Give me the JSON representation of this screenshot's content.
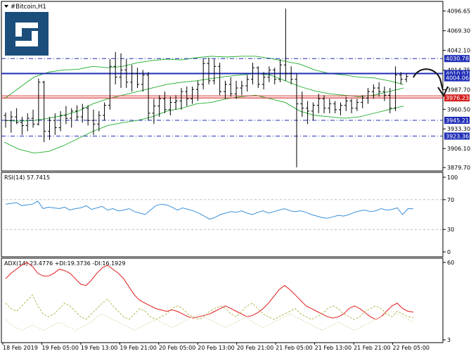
{
  "symbol_title": "#Bitcoin,H1",
  "colors": {
    "background": "#ffffff",
    "frame": "#000000",
    "bull_candle": "#000000",
    "bear_candle": "#000000",
    "bollinger": "#1fae2a",
    "support_resistance": "#1f2db5",
    "key_level": "#d42020",
    "rsi_line": "#3a8fd8",
    "adx_line": "#e21a1a",
    "plus_di": "#b9b85a",
    "minus_di": "#d9d8a8",
    "logo_bg": "#1b4e7a",
    "price_badge_bg": "#1f2db5",
    "price_badge_red": "#d42020"
  },
  "chart_data": [
    {
      "type": "candlestick",
      "panel": "price",
      "title": "#Bitcoin,H1",
      "y_axis_ticks": [
        "4096.65",
        "4069.30",
        "4042.10",
        "4014.75",
        "3987.70",
        "3960.50",
        "3933.30",
        "3906.10",
        "3879.70"
      ],
      "ylim": [
        3875,
        4110
      ],
      "x_tick_labels": [
        "18 Feb 2019",
        "19 Feb 05:00",
        "19 Feb 13:00",
        "19 Feb 21:00",
        "20 Feb 05:00",
        "20 Feb 13:00",
        "20 Feb 21:00",
        "21 Feb 05:00",
        "21 Feb 13:00",
        "21 Feb 21:00",
        "22 Feb 05:00"
      ],
      "candles_ohlc": [
        [
          3952,
          3956,
          3935,
          3945
        ],
        [
          3945,
          3958,
          3928,
          3950
        ],
        [
          3950,
          3962,
          3940,
          3942
        ],
        [
          3942,
          3950,
          3925,
          3938
        ],
        [
          3938,
          3955,
          3930,
          3948
        ],
        [
          3948,
          3960,
          3935,
          3940
        ],
        [
          3940,
          4003,
          3938,
          3998
        ],
        [
          3998,
          4000,
          3915,
          3930
        ],
        [
          3930,
          3950,
          3918,
          3945
        ],
        [
          3945,
          3955,
          3925,
          3935
        ],
        [
          3935,
          3958,
          3930,
          3952
        ],
        [
          3952,
          3965,
          3940,
          3948
        ],
        [
          3948,
          3962,
          3935,
          3958
        ],
        [
          3958,
          3966,
          3945,
          3950
        ],
        [
          3950,
          3968,
          3942,
          3962
        ],
        [
          3962,
          3966,
          3938,
          3945
        ],
        [
          3945,
          3960,
          3925,
          3940
        ],
        [
          3940,
          3958,
          3930,
          3952
        ],
        [
          3952,
          3970,
          3945,
          3966
        ],
        [
          3966,
          4030,
          3960,
          4020
        ],
        [
          4020,
          4040,
          3995,
          4005
        ],
        [
          4005,
          4038,
          3990,
          4015
        ],
        [
          4015,
          4030,
          3990,
          3998
        ],
        [
          3998,
          4022,
          3985,
          4010
        ],
        [
          4010,
          4018,
          3990,
          3995
        ],
        [
          3995,
          4015,
          3985,
          4008
        ],
        [
          4008,
          4012,
          3945,
          3955
        ],
        [
          3955,
          3975,
          3940,
          3965
        ],
        [
          3965,
          3980,
          3950,
          3975
        ],
        [
          3975,
          3985,
          3955,
          3960
        ],
        [
          3960,
          3978,
          3952,
          3970
        ],
        [
          3970,
          3980,
          3960,
          3972
        ],
        [
          3972,
          3990,
          3960,
          3985
        ],
        [
          3985,
          3992,
          3965,
          3975
        ],
        [
          3975,
          3992,
          3968,
          3988
        ],
        [
          3988,
          4000,
          3972,
          3995
        ],
        [
          3995,
          4030,
          3988,
          4024
        ],
        [
          4024,
          4032,
          3995,
          4000
        ],
        [
          4000,
          4030,
          3995,
          4020
        ],
        [
          4020,
          4025,
          3980,
          3985
        ],
        [
          3985,
          4000,
          3975,
          3995
        ],
        [
          3995,
          4005,
          3978,
          3982
        ],
        [
          3982,
          4000,
          3975,
          3990
        ],
        [
          3990,
          4000,
          3980,
          3993
        ],
        [
          3993,
          4008,
          3985,
          4002
        ],
        [
          4002,
          4025,
          3995,
          4018
        ],
        [
          4018,
          4020,
          3990,
          3995
        ],
        [
          3995,
          4012,
          3988,
          4005
        ],
        [
          4005,
          4020,
          3998,
          4015
        ],
        [
          4015,
          4018,
          3995,
          4002
        ],
        [
          4002,
          4030,
          3998,
          4022
        ],
        [
          4022,
          4100,
          4000,
          4010
        ],
        [
          4010,
          4020,
          3995,
          4002
        ],
        [
          4002,
          4010,
          3880,
          3968
        ],
        [
          3968,
          3985,
          3950,
          3962
        ],
        [
          3962,
          3972,
          3940,
          3958
        ],
        [
          3958,
          3970,
          3945,
          3966
        ],
        [
          3966,
          3982,
          3955,
          3975
        ],
        [
          3975,
          3980,
          3955,
          3962
        ],
        [
          3962,
          3975,
          3955,
          3968
        ],
        [
          3968,
          3972,
          3955,
          3960
        ],
        [
          3960,
          3970,
          3952,
          3966
        ],
        [
          3966,
          3978,
          3958,
          3972
        ],
        [
          3972,
          3975,
          3955,
          3962
        ],
        [
          3962,
          3975,
          3958,
          3970
        ],
        [
          3970,
          3980,
          3962,
          3976
        ],
        [
          3976,
          3990,
          3968,
          3985
        ],
        [
          3985,
          3995,
          3975,
          3990
        ],
        [
          3990,
          3998,
          3978,
          3985
        ],
        [
          3985,
          3992,
          3972,
          3980
        ],
        [
          3980,
          3990,
          3955,
          3962
        ],
        [
          3962,
          4020,
          3958,
          4008
        ],
        [
          4008,
          4012,
          3995,
          4002
        ],
        [
          4002,
          4010,
          3998,
          4006
        ]
      ],
      "bollinger_bands": {
        "upper": [
          3975,
          3990,
          4005,
          4012,
          4015,
          4016,
          4020,
          4018,
          4020,
          4025,
          4028,
          4030,
          4029,
          4032,
          4034,
          4033,
          4034,
          4034,
          4031,
          4027,
          4023,
          4015,
          4010,
          4008,
          4005,
          4004,
          4000,
          3995
        ],
        "middle": [
          3945,
          3944,
          3945,
          3948,
          3952,
          3958,
          3968,
          3975,
          3980,
          3985,
          3990,
          3995,
          3998,
          4000,
          4003,
          4006,
          4008,
          4010,
          4008,
          4000,
          3992,
          3986,
          3982,
          3980,
          3978,
          3980,
          3985,
          3990
        ],
        "lower": [
          3915,
          3905,
          3900,
          3902,
          3910,
          3920,
          3930,
          3938,
          3942,
          3945,
          3950,
          3958,
          3962,
          3968,
          3970,
          3975,
          3978,
          3980,
          3975,
          3970,
          3958,
          3952,
          3950,
          3948,
          3950,
          3955,
          3960,
          3965
        ]
      },
      "horizontal_levels": [
        {
          "price": 4030.78,
          "label": "4030.78",
          "style": "dash-dot"
        },
        {
          "price": 4010.07,
          "label": "4010.07",
          "style": "solid"
        },
        {
          "price": 4004.06,
          "label": "4004.06",
          "style": "price"
        },
        {
          "price": 3976.23,
          "label": "3976.23",
          "style": "solid-red"
        },
        {
          "price": 3945.21,
          "label": "3945.21",
          "style": "dash-dot"
        },
        {
          "price": 3923.36,
          "label": "3923.36",
          "style": "dash-dot"
        }
      ]
    },
    {
      "type": "line",
      "panel": "rsi",
      "title": "RSI(14) 57.7415",
      "y_axis_ticks": [
        "100",
        "70",
        "30",
        "0"
      ],
      "ylim": [
        0,
        100
      ],
      "levels": [
        70,
        30
      ],
      "values": [
        64,
        65,
        66,
        62,
        63,
        64,
        68,
        58,
        60,
        59,
        58,
        60,
        56,
        58,
        59,
        62,
        57,
        59,
        61,
        56,
        58,
        55,
        56,
        58,
        54,
        52,
        50,
        56,
        62,
        64,
        63,
        60,
        56,
        59,
        57,
        55,
        52,
        48,
        44,
        46,
        50,
        52,
        54,
        53,
        55,
        52,
        50,
        53,
        55,
        52,
        54,
        56,
        58,
        55,
        54,
        55,
        53,
        50,
        48,
        46,
        45,
        47,
        49,
        48,
        50,
        53,
        55,
        56,
        54,
        55,
        58,
        56,
        57,
        59,
        50,
        58,
        57.74
      ]
    },
    {
      "type": "line",
      "panel": "adx",
      "title": "ADX(14) 23.4776 +DI:19.3736 -DI:16.1929",
      "y_axis_ticks": [
        "60",
        "3"
      ],
      "ylim": [
        3,
        60
      ],
      "series": [
        {
          "name": "ADX(14)",
          "values": [
            48,
            52,
            55,
            58,
            60,
            57,
            52,
            50,
            50,
            52,
            55,
            54,
            52,
            48,
            44,
            43,
            47,
            52,
            56,
            58,
            55,
            52,
            48,
            42,
            36,
            32,
            30,
            28,
            26,
            25,
            24,
            25,
            24,
            22,
            20,
            19,
            20,
            21,
            22,
            24,
            26,
            28,
            26,
            24,
            22,
            20,
            21,
            23,
            26,
            30,
            35,
            40,
            43,
            40,
            36,
            32,
            28,
            26,
            24,
            22,
            20,
            19,
            20,
            22,
            26,
            28,
            26,
            23,
            20,
            18,
            20,
            24,
            28,
            30,
            26,
            24,
            23.48
          ]
        },
        {
          "name": "+DI",
          "values": [
            30,
            26,
            24,
            28,
            32,
            36,
            28,
            22,
            20,
            22,
            26,
            30,
            28,
            24,
            20,
            18,
            22,
            26,
            30,
            33,
            28,
            24,
            20,
            18,
            22,
            26,
            24,
            20,
            18,
            20,
            22,
            26,
            28,
            26,
            22,
            20,
            18,
            20,
            24,
            26,
            28,
            26,
            22,
            20,
            24,
            28,
            30,
            26,
            22,
            20,
            18,
            20,
            22,
            24,
            26,
            22,
            20,
            18,
            20,
            22,
            26,
            28,
            26,
            22,
            20,
            18,
            20,
            24,
            26,
            28,
            26,
            22,
            20,
            24,
            22,
            20,
            19.37
          ]
        },
        {
          "name": "-DI",
          "values": [
            18,
            14,
            12,
            10,
            12,
            14,
            12,
            10,
            12,
            14,
            16,
            14,
            12,
            10,
            12,
            14,
            16,
            20,
            22,
            20,
            18,
            16,
            14,
            12,
            10,
            12,
            14,
            16,
            18,
            16,
            14,
            12,
            14,
            16,
            18,
            20,
            22,
            20,
            18,
            16,
            14,
            12,
            14,
            16,
            18,
            20,
            16,
            14,
            12,
            14,
            16,
            18,
            20,
            22,
            20,
            18,
            16,
            14,
            12,
            10,
            12,
            14,
            16,
            14,
            12,
            10,
            12,
            14,
            16,
            18,
            20,
            22,
            24,
            22,
            20,
            18,
            16.19
          ]
        }
      ]
    }
  ]
}
